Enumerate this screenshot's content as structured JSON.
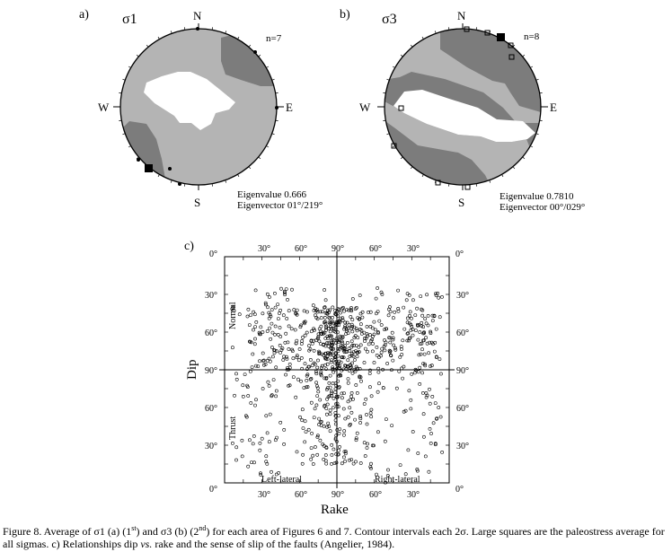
{
  "panel_a": {
    "label": "a)",
    "sigma": "σ1",
    "n": "n=7",
    "compass": {
      "n": "N",
      "s": "S",
      "e": "E",
      "w": "W"
    },
    "eigenvalue": "Eigenvalue 0.666",
    "eigenvector": "Eigenvector 01°/219°"
  },
  "panel_b": {
    "label": "b)",
    "sigma": "σ3",
    "n": "n=8",
    "compass": {
      "n": "N",
      "s": "S",
      "e": "E",
      "w": "W"
    },
    "eigenvalue": "Eigenvalue 0.7810",
    "eigenvector": "Eigenvector 00°/029°"
  },
  "panel_c": {
    "label": "c)",
    "xlabel": "Rake",
    "ylabel": "Dip",
    "top_ticks": [
      "0°",
      "30°",
      "60°",
      "90°",
      "60°",
      "30°",
      "0°"
    ],
    "bottom_ticks": [
      "0°",
      "30°",
      "60°",
      "90°",
      "60°",
      "30°",
      "0°"
    ],
    "left_ticks": [
      "0°",
      "30°",
      "60°",
      "90°",
      "60°",
      "30°",
      "0°"
    ],
    "right_ticks": [
      "0°",
      "30°",
      "60°",
      "90°",
      "60°",
      "30°",
      "0°"
    ],
    "normal": "Normal",
    "thrust": "Thrust",
    "left_lateral": "Left-lateral",
    "right_lateral": "Right-lateral"
  },
  "chart_data": {
    "type": "scatter",
    "xlabel": "Rake",
    "ylabel": "Dip",
    "x_ticks": [
      "0°",
      "30°",
      "60°",
      "90°",
      "60°",
      "30°",
      "0°"
    ],
    "y_ticks": [
      "0°",
      "30°",
      "60°",
      "90°",
      "60°",
      "30°",
      "0°"
    ],
    "xlim": [
      0,
      180
    ],
    "ylim": [
      0,
      180
    ],
    "grid": false,
    "quadrant_labels": [
      "Normal",
      "Thrust",
      "Left-lateral",
      "Right-lateral"
    ],
    "marker": "open-circle",
    "approx_point_count": 900,
    "density_note": "points concentrated near rake 90° and dip 60°–90° in the Normal half"
  },
  "caption": {
    "line1_a": "Figure 8. Average of σ1 (a) (1",
    "sup1": "st",
    "line1_b": ") and σ3 (b) (2",
    "sup2": "nd",
    "line1_c": ") for each area of Figures 6 and 7. Contour intervals each 2σ. Large squares are the paleostress average for all sigmas. c) Relationships dip ",
    "vs": "vs.",
    "line2": " rake and the sense of slip of the faults (Angelier, 1984)."
  }
}
